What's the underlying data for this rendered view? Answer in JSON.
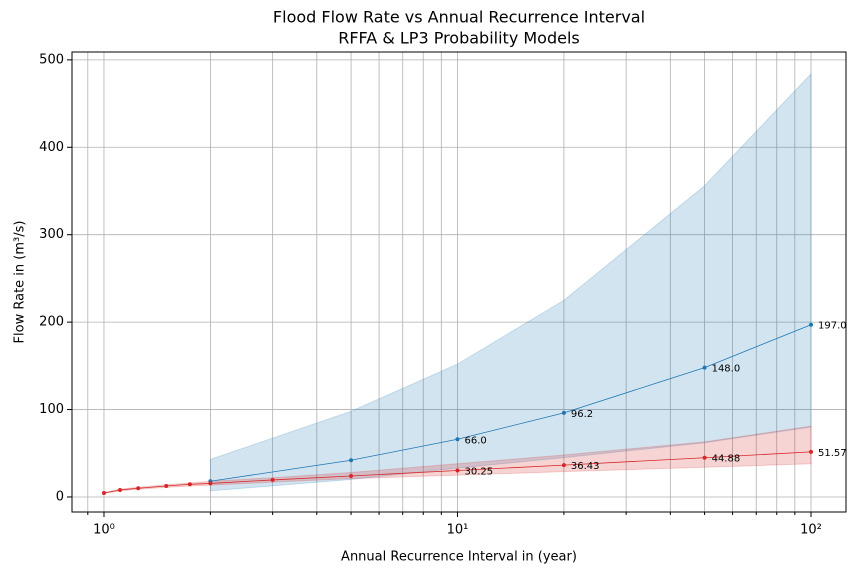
{
  "chart_data": {
    "type": "line",
    "title": "Flood Flow Rate vs Annual Recurrence Interval",
    "subtitle": "RFFA & LP3 Probability Models",
    "xlabel": "Annual Recurrence Interval in (year)",
    "ylabel": "Flow Rate in (m³/s)",
    "xscale": "log",
    "xlim": [
      0.812,
      125.6
    ],
    "ylim": [
      -17.2,
      509
    ],
    "xticks": [
      {
        "value": 1,
        "label": "10⁰"
      },
      {
        "value": 10,
        "label": "10¹"
      },
      {
        "value": 100,
        "label": "10²"
      }
    ],
    "xminorticks": [
      0.9,
      2,
      3,
      4,
      5,
      6,
      7,
      8,
      9,
      20,
      30,
      40,
      50,
      60,
      70,
      80,
      90
    ],
    "yticks": [
      0,
      100,
      200,
      300,
      400,
      500
    ],
    "grid": true,
    "band_opacity": 0.2,
    "series": [
      {
        "color": "#1f77b4",
        "x": [
          2,
          5,
          10,
          20,
          50,
          100
        ],
        "values": [
          18,
          42,
          66,
          96.2,
          148,
          197
        ],
        "value_labels": [
          null,
          null,
          "66.0",
          "96.2",
          "148.0",
          "197.0"
        ],
        "band_lower": [
          7,
          20,
          33,
          45,
          62,
          80
        ],
        "band_upper": [
          43,
          98,
          152,
          225,
          356,
          484
        ]
      },
      {
        "color": "#d62728",
        "x": [
          1,
          1.11,
          1.25,
          1.5,
          1.75,
          2,
          3,
          5,
          10,
          20,
          50,
          100
        ],
        "values": [
          4.5,
          8,
          10,
          12.5,
          14.5,
          15.5,
          19.5,
          24,
          30.25,
          36.43,
          44.88,
          51.57
        ],
        "value_labels": [
          null,
          null,
          null,
          null,
          null,
          null,
          null,
          null,
          "30.25",
          "36.43",
          "44.88",
          "51.57"
        ],
        "band_lower": [
          4,
          7,
          9,
          11,
          12.5,
          13.5,
          17,
          21,
          25,
          29,
          34,
          38
        ],
        "band_upper": [
          5,
          9,
          11,
          14,
          16,
          18,
          22,
          28,
          38,
          48,
          63,
          81
        ]
      }
    ]
  }
}
